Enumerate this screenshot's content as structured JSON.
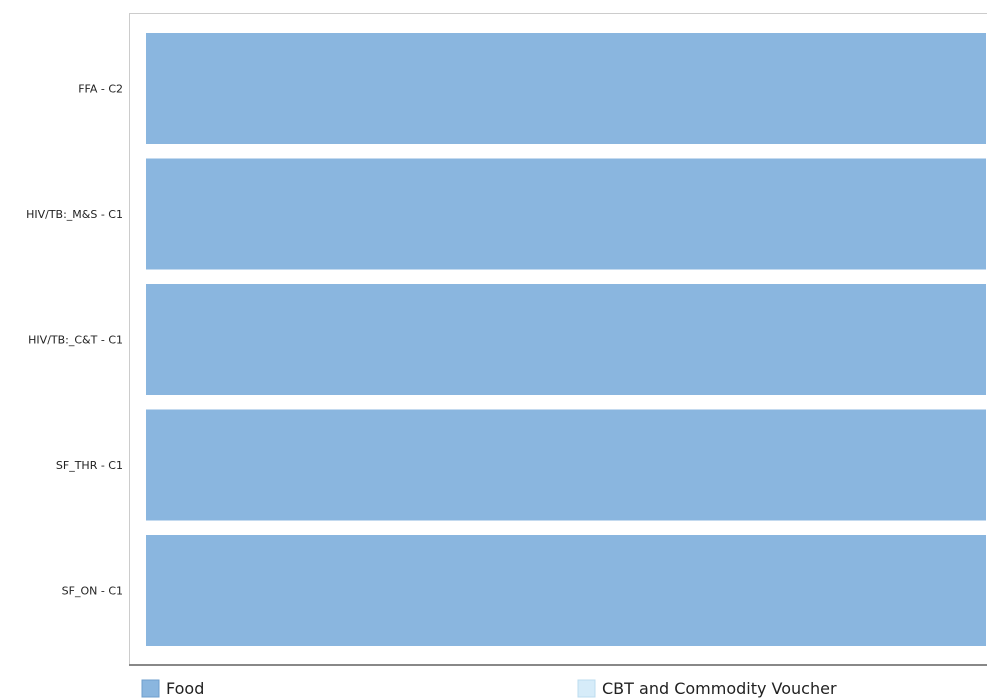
{
  "chart_data": {
    "type": "bar",
    "orientation": "horizontal",
    "stacked": true,
    "categories": [
      "FFA - C2",
      "HIV/TB:_M&S - C1",
      "HIV/TB:_C&T - C1",
      "SF_THR - C1",
      "SF_ON - C1"
    ],
    "series": [
      {
        "name": "Food",
        "values": [
          100,
          100,
          100,
          100,
          100
        ],
        "color": "#8ab6df"
      },
      {
        "name": "CBT and Commodity Voucher",
        "values": [
          0,
          0,
          0,
          0,
          0
        ],
        "color": "#d6ecf9"
      }
    ],
    "xlim": [
      0,
      100
    ],
    "grid": false,
    "legend_position": "bottom"
  }
}
